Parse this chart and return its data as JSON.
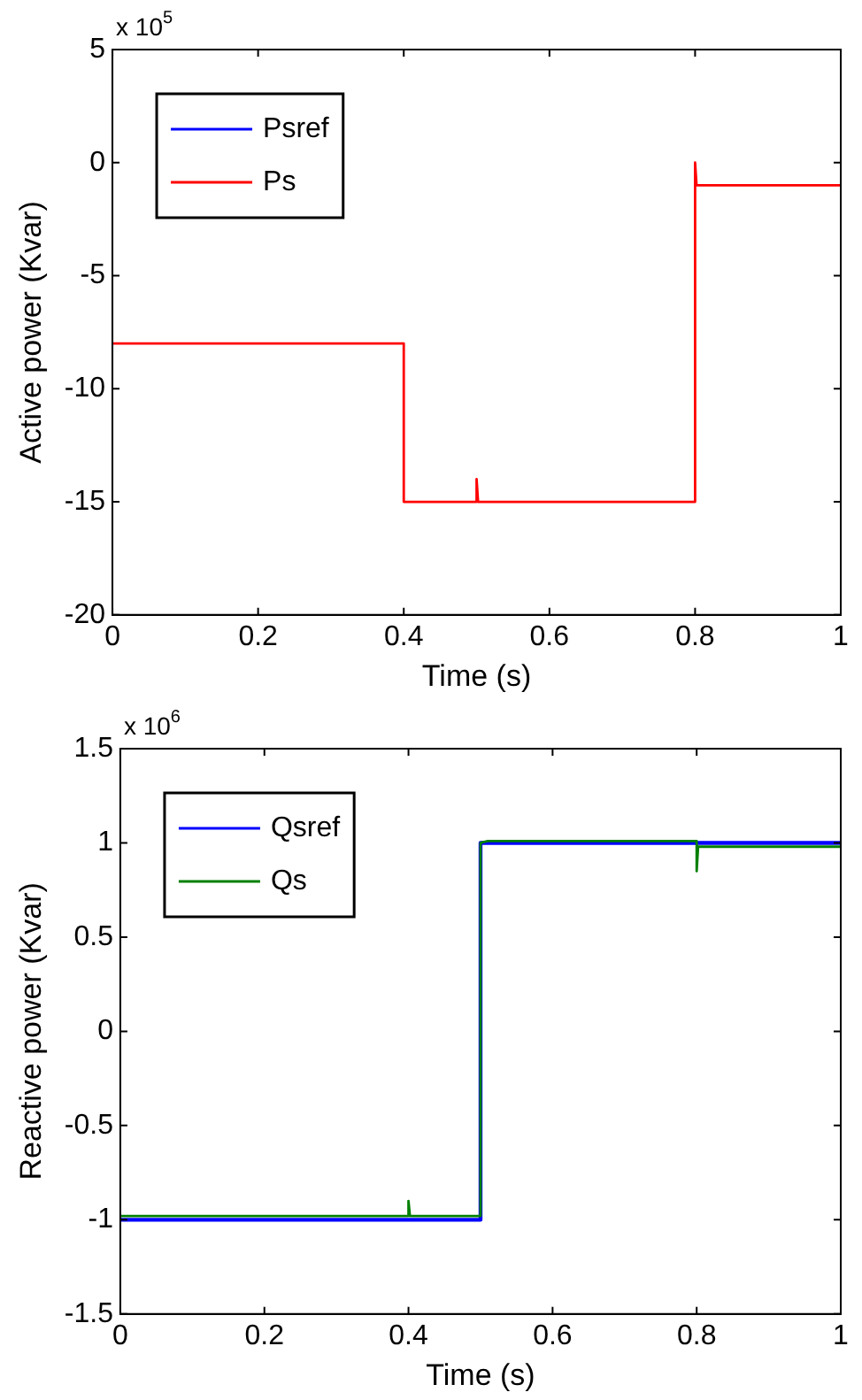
{
  "chart_data": [
    {
      "type": "line",
      "xlabel": "Time (s)",
      "ylabel": "Active power (Kvar)",
      "annotations": [
        "x 10$^{5}$"
      ],
      "xlim": [
        0,
        1
      ],
      "xticks": [
        0,
        0.2,
        0.4,
        0.6,
        0.8,
        1
      ],
      "ylim": [
        -20,
        5
      ],
      "yticks": [
        -20,
        -15,
        -10,
        -5,
        0,
        5
      ],
      "grid": false,
      "legend": "top left",
      "marker": "none",
      "line_style": "solid",
      "series": [
        {
          "name": "Psref",
          "color": "#0000ff"
        },
        {
          "name": "Ps",
          "color": "#ff0000",
          "x": [
            0,
            0.4,
            0.4,
            0.5,
            0.5,
            0.502,
            0.8,
            0.8,
            0.802,
            1
          ],
          "values": [
            -8,
            -8,
            -15,
            -15,
            -14,
            -15,
            -15,
            0,
            -1,
            -1
          ]
        }
      ]
    },
    {
      "type": "line",
      "xlabel": "Time (s)",
      "ylabel": "Reactive power (Kvar)",
      "annotations": [
        "x 10$^{6}$"
      ],
      "xlim": [
        0,
        1
      ],
      "xticks": [
        0,
        0.2,
        0.4,
        0.6,
        0.8,
        1
      ],
      "ylim": [
        -1.5,
        1.5
      ],
      "yticks": [
        -1.5,
        -1,
        -0.5,
        0,
        0.5,
        1,
        1.5
      ],
      "grid": false,
      "legend": "top left",
      "marker": "none",
      "line_style": "solid",
      "series": [
        {
          "name": "Qsref",
          "color": "#0000ff",
          "x": [
            0,
            0.5,
            0.5,
            1
          ],
          "values": [
            -1,
            -1,
            1,
            1
          ]
        },
        {
          "name": "Qs",
          "color": "#008000",
          "x": [
            0,
            0.4,
            0.4,
            0.402,
            0.5,
            0.5,
            0.51,
            0.8,
            0.8,
            0.802,
            1
          ],
          "values": [
            -0.98,
            -0.98,
            -0.9,
            -0.98,
            -0.98,
            1,
            1.01,
            1.01,
            0.85,
            0.98,
            0.98
          ]
        }
      ]
    }
  ]
}
